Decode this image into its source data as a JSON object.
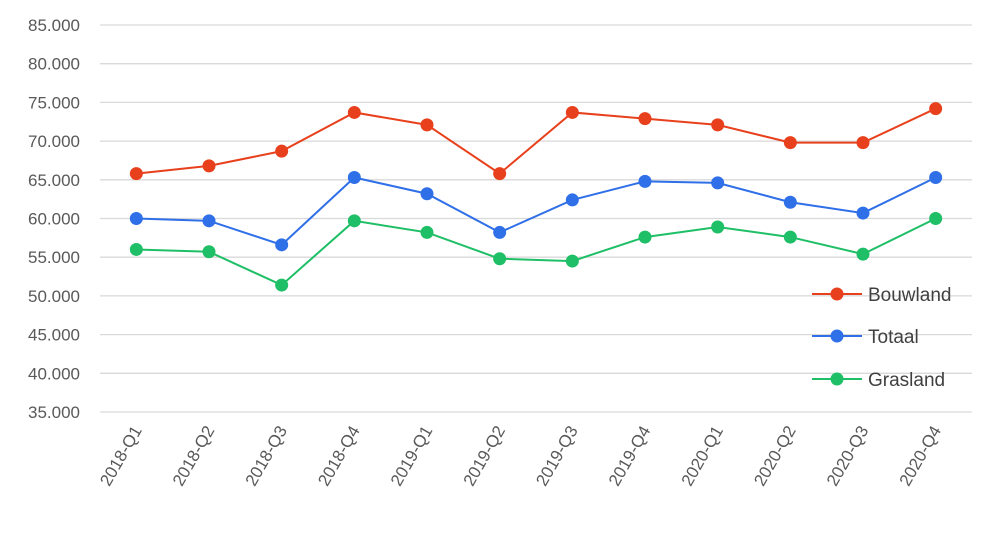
{
  "chart_data": {
    "type": "line",
    "title": "",
    "xlabel": "",
    "ylabel": "",
    "categories": [
      "2018-Q1",
      "2018-Q2",
      "2018-Q3",
      "2018-Q4",
      "2019-Q1",
      "2019-Q2",
      "2019-Q3",
      "2019-Q4",
      "2020-Q1",
      "2020-Q2",
      "2020-Q3",
      "2020-Q4"
    ],
    "ylim": [
      35000,
      85000
    ],
    "y_ticks": [
      35000,
      40000,
      45000,
      50000,
      55000,
      60000,
      65000,
      70000,
      75000,
      80000,
      85000
    ],
    "y_tick_labels": [
      "35.000",
      "40.000",
      "45.000",
      "50.000",
      "55.000",
      "60.000",
      "65.000",
      "70.000",
      "75.000",
      "80.000",
      "85.000"
    ],
    "grid": true,
    "legend_position": "right",
    "series": [
      {
        "name": "Bouwland",
        "color": "#e8401c",
        "values": [
          65800,
          66800,
          68700,
          73700,
          72100,
          65800,
          73700,
          72900,
          72100,
          69800,
          69800,
          74200
        ]
      },
      {
        "name": "Totaal",
        "color": "#2f6fe8",
        "values": [
          60000,
          59700,
          56600,
          65300,
          63200,
          58200,
          62400,
          64800,
          64600,
          62100,
          60700,
          65300
        ]
      },
      {
        "name": "Grasland",
        "color": "#1ebf66",
        "values": [
          56000,
          55700,
          51400,
          59700,
          58200,
          54800,
          54500,
          57600,
          58900,
          57600,
          55400,
          60000
        ]
      }
    ]
  }
}
